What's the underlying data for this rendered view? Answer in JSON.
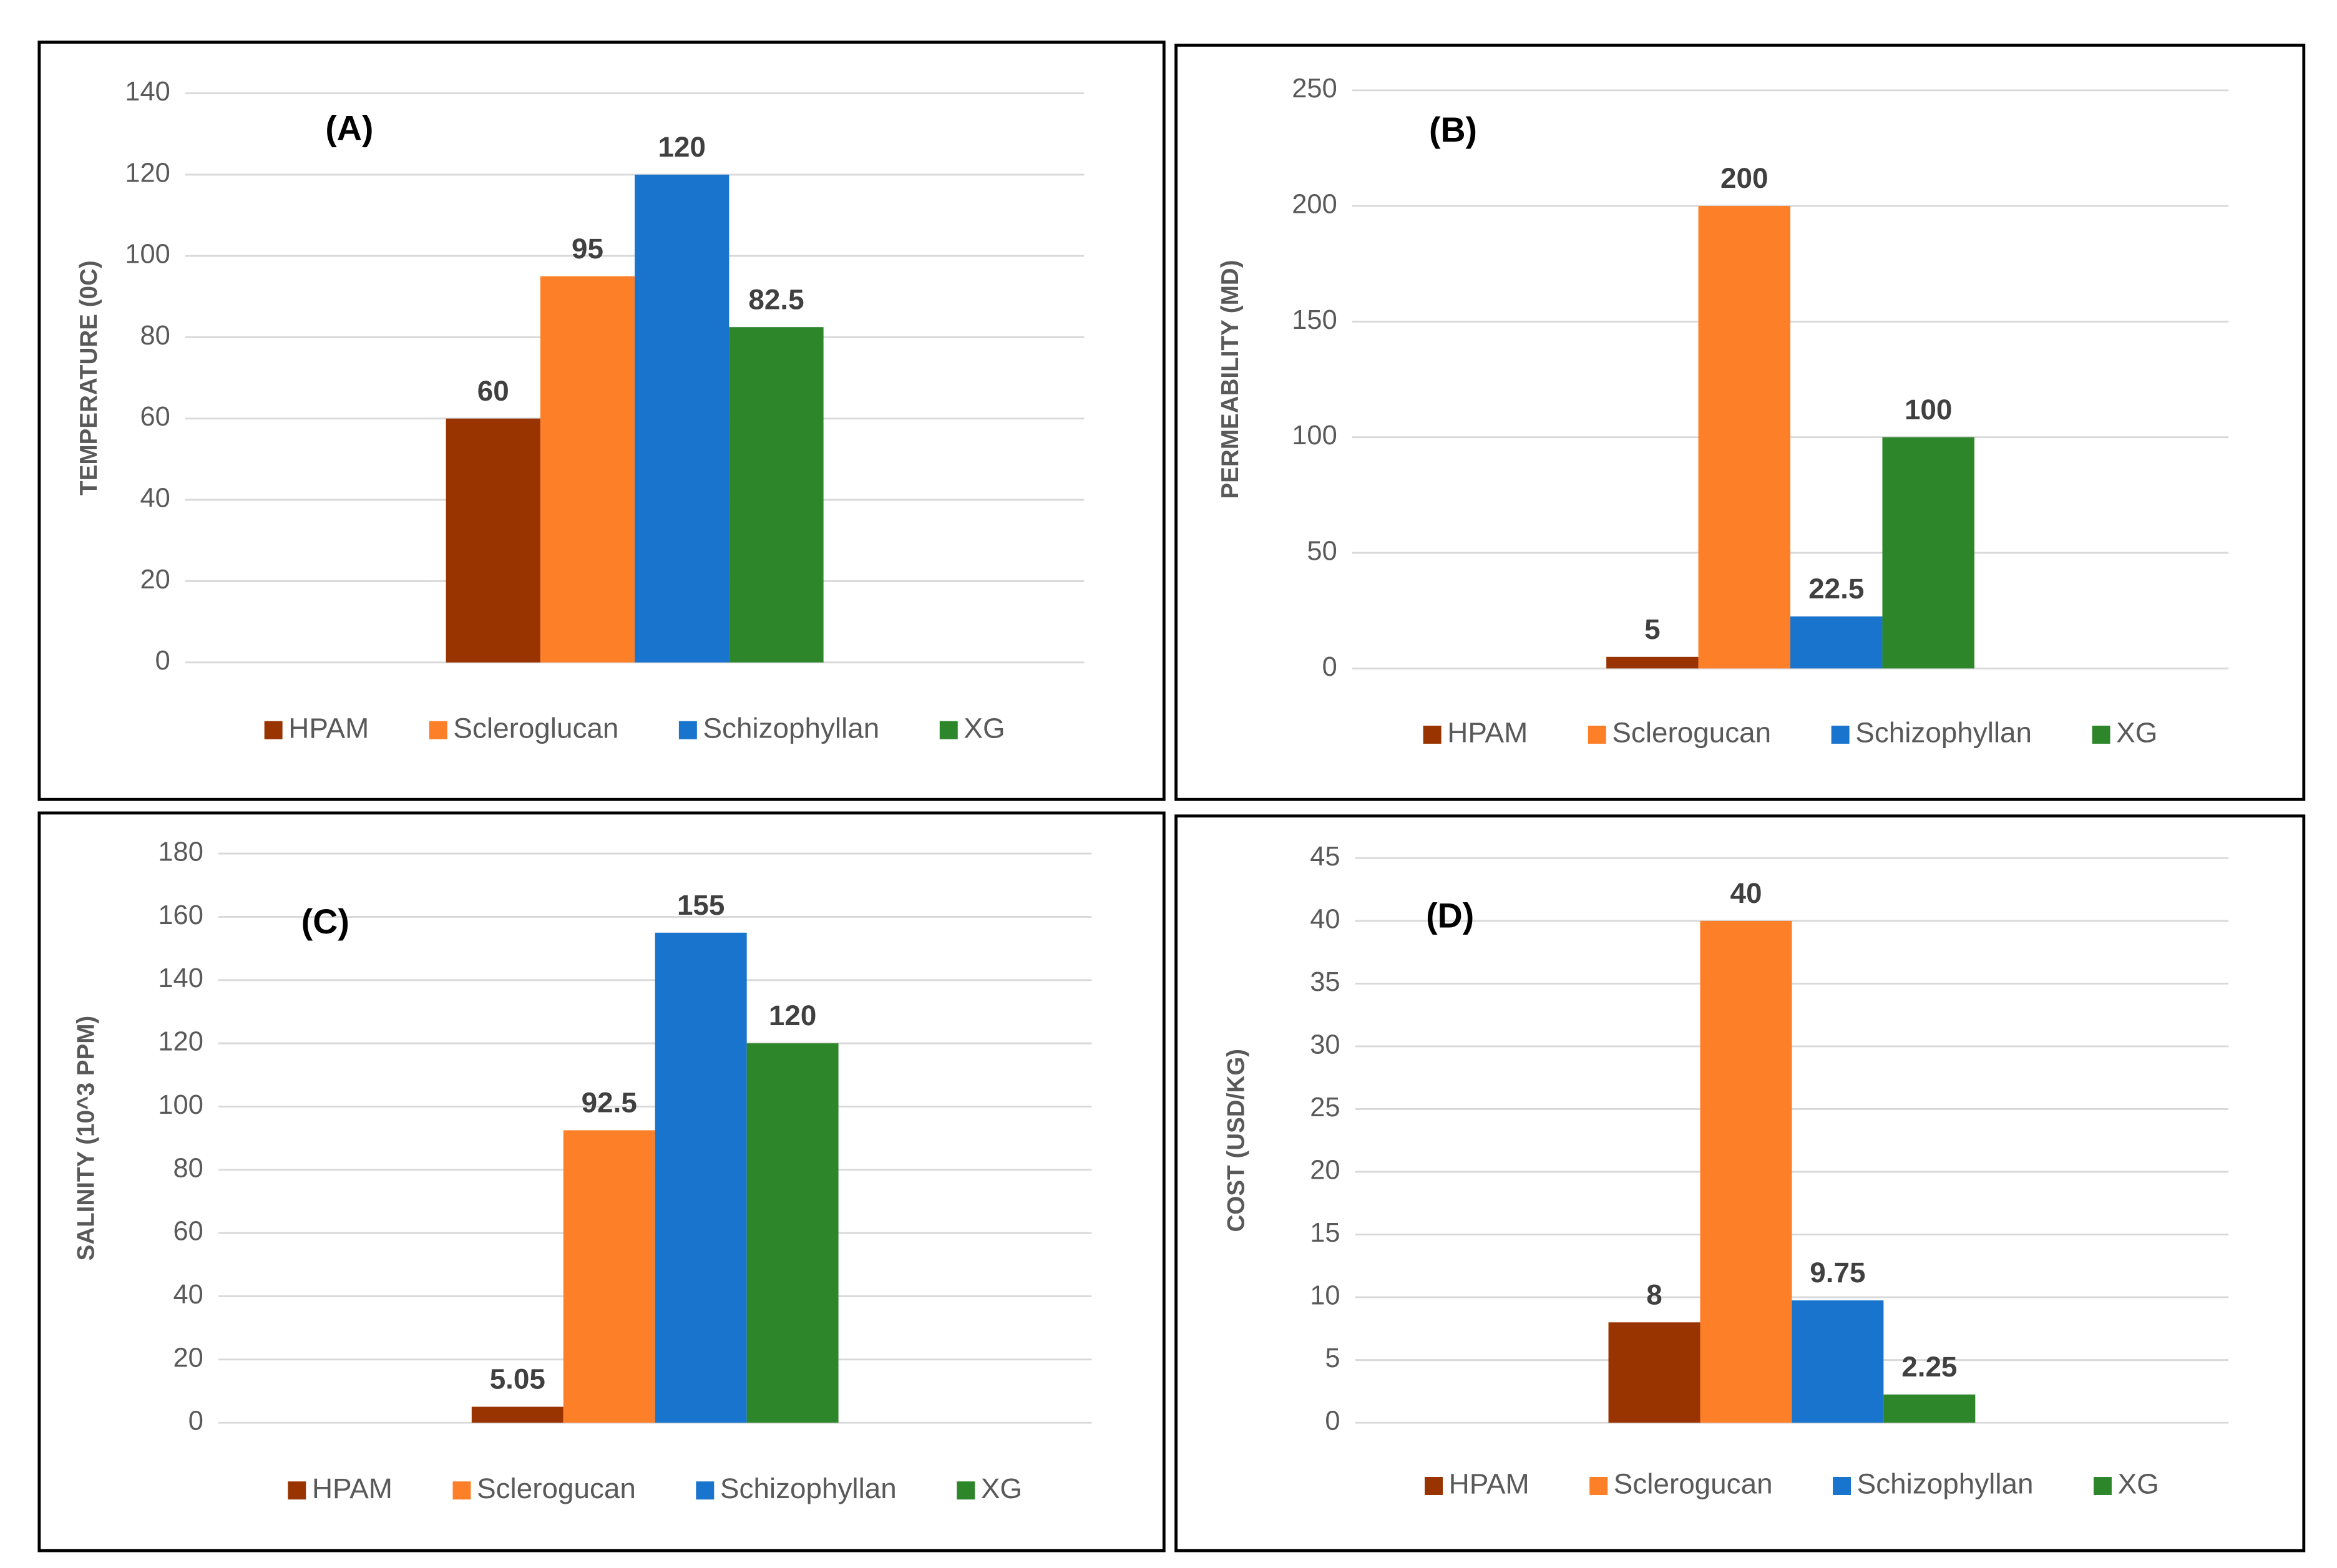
{
  "chart_data": [
    {
      "type": "bar",
      "title": "(A)",
      "ylabel": "TEMPERATURE (0C)",
      "categories": [
        null
      ],
      "ylim": [
        0,
        140
      ],
      "yticks": [
        0,
        20,
        40,
        60,
        80,
        100,
        120,
        140
      ],
      "grid": true,
      "series": [
        {
          "name": "HPAM",
          "color": "#993300",
          "values": [
            60
          ]
        },
        {
          "name": "Scleroglucan",
          "color": "#fd7f28",
          "values": [
            95
          ]
        },
        {
          "name": "Schizophyllan",
          "color": "#1874cd",
          "values": [
            120
          ]
        },
        {
          "name": "XG",
          "color": "#2e862b",
          "values": [
            82.5
          ]
        }
      ]
    },
    {
      "type": "bar",
      "title": "(B)",
      "ylabel": "PERMEABILITY (MD)",
      "categories": [
        null
      ],
      "ylim": [
        0,
        250
      ],
      "yticks": [
        0,
        50,
        100,
        150,
        200,
        250
      ],
      "grid": true,
      "series": [
        {
          "name": "HPAM",
          "color": "#993300",
          "values": [
            5
          ]
        },
        {
          "name": "Sclerogucan",
          "color": "#fd7f28",
          "values": [
            200
          ]
        },
        {
          "name": "Schizophyllan",
          "color": "#1874cd",
          "values": [
            22.5
          ]
        },
        {
          "name": "XG",
          "color": "#2e862b",
          "values": [
            100
          ]
        }
      ]
    },
    {
      "type": "bar",
      "title": "(C)",
      "ylabel": "SALINITY (10^3 PPM)",
      "categories": [
        null
      ],
      "ylim": [
        0,
        180
      ],
      "yticks": [
        0,
        20,
        40,
        60,
        80,
        100,
        120,
        140,
        160,
        180
      ],
      "grid": true,
      "series": [
        {
          "name": "HPAM",
          "color": "#993300",
          "values": [
            5.05
          ]
        },
        {
          "name": "Sclerogucan",
          "color": "#fd7f28",
          "values": [
            92.5
          ]
        },
        {
          "name": "Schizophyllan",
          "color": "#1874cd",
          "values": [
            155
          ]
        },
        {
          "name": "XG",
          "color": "#2e862b",
          "values": [
            120
          ]
        }
      ]
    },
    {
      "type": "bar",
      "title": "(D)",
      "ylabel": "COST (USD/KG)",
      "categories": [
        null
      ],
      "ylim": [
        0,
        45
      ],
      "yticks": [
        0,
        5,
        10,
        15,
        20,
        25,
        30,
        35,
        40,
        45
      ],
      "grid": true,
      "series": [
        {
          "name": "HPAM",
          "color": "#993300",
          "values": [
            8
          ]
        },
        {
          "name": "Sclerogucan",
          "color": "#fd7f28",
          "values": [
            40
          ]
        },
        {
          "name": "Schizophyllan",
          "color": "#1874cd",
          "values": [
            9.75
          ]
        },
        {
          "name": "XG",
          "color": "#2e862b",
          "values": [
            2.25
          ]
        }
      ]
    }
  ]
}
